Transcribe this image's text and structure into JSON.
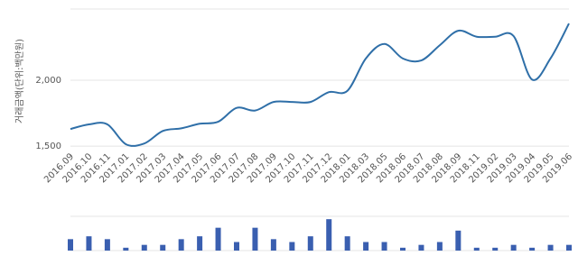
{
  "chart_data": [
    {
      "type": "line",
      "y_label": "거래금액(단위:백만원)",
      "categories": [
        "2016.09",
        "2016.10",
        "2016.11",
        "2017.01",
        "2017.02",
        "2017.03",
        "2017.04",
        "2017.05",
        "2017.06",
        "2017.07",
        "2017.08",
        "2017.09",
        "2017.10",
        "2017.11",
        "2017.12",
        "2018.01",
        "2018.03",
        "2018.05",
        "2018.06",
        "2018.07",
        "2018.08",
        "2018.09",
        "2018.11",
        "2019.02",
        "2019.03",
        "2019.04",
        "2019.05",
        "2019.06"
      ],
      "values": [
        1630,
        1665,
        1665,
        1515,
        1520,
        1615,
        1635,
        1670,
        1685,
        1790,
        1770,
        1835,
        1835,
        1835,
        1910,
        1920,
        2165,
        2275,
        2165,
        2150,
        2265,
        2375,
        2330,
        2330,
        2335,
        2005,
        2165,
        2430
      ],
      "color": "#2f6fa8",
      "ylim": [
        1460,
        2540
      ],
      "yticks": [
        {
          "value": 1500,
          "label": "1,500"
        },
        {
          "value": 2000,
          "label": "2,000"
        }
      ],
      "grid": true
    },
    {
      "type": "bar",
      "values": [
        4,
        5,
        4,
        1,
        2,
        2,
        4,
        5,
        8,
        3,
        8,
        4,
        3,
        5,
        11,
        5,
        3,
        3,
        1,
        2,
        3,
        7,
        1,
        1,
        2,
        1,
        2,
        2
      ],
      "color": "#3a5fb0",
      "ylim": [
        0,
        12
      ]
    }
  ]
}
